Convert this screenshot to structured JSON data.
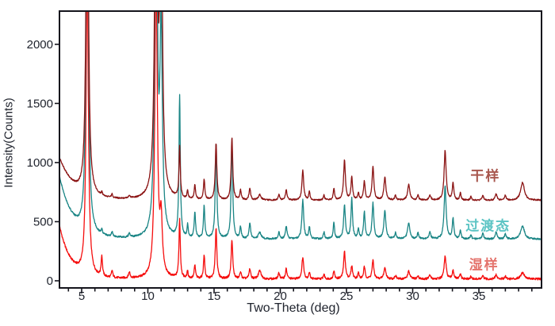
{
  "chart_data": {
    "type": "line",
    "title": "",
    "xlabel": "Two-Theta (deg)",
    "ylabel": "Intensity(Counts)",
    "xlim": [
      3.32,
      39.72
    ],
    "ylim": [
      -60,
      2280
    ],
    "grid": false,
    "background": "#ffffff",
    "axis_color": "#14141c",
    "tick_label_color": "#20242e",
    "x_axis": {
      "major_ticks": [
        5,
        10,
        15,
        20,
        25,
        30,
        35
      ],
      "minor_tick_start": 4,
      "minor_tick_end": 39,
      "minor_tick_step": 1
    },
    "y_axis": {
      "major_ticks": [
        0,
        500,
        1000,
        1500,
        2000
      ]
    },
    "peak_positions_deg": [
      5.42,
      6.52,
      7.3,
      8.6,
      10.62,
      11.0,
      12.4,
      13.0,
      13.55,
      14.25,
      15.15,
      16.35,
      17.0,
      17.7,
      18.45,
      19.9,
      20.45,
      21.7,
      22.2,
      23.3,
      24.05,
      24.85,
      25.4,
      25.9,
      26.35,
      27.0,
      27.9,
      28.7,
      29.7,
      30.4,
      31.3,
      32.45,
      33.05,
      33.6,
      34.4,
      35.3,
      36.3,
      37.0,
      38.3
    ],
    "peak_widths_deg": [
      0.1,
      0.06,
      0.06,
      0.07,
      0.11,
      0.11,
      0.06,
      0.05,
      0.06,
      0.06,
      0.07,
      0.07,
      0.06,
      0.07,
      0.12,
      0.07,
      0.07,
      0.08,
      0.06,
      0.06,
      0.06,
      0.08,
      0.07,
      0.06,
      0.07,
      0.08,
      0.09,
      0.07,
      0.1,
      0.07,
      0.08,
      0.09,
      0.07,
      0.06,
      0.06,
      0.07,
      0.08,
      0.07,
      0.17
    ],
    "series": [
      {
        "key": "wet",
        "name": "湿样",
        "color": "#f50d0d",
        "label_color": "#e4736c",
        "baseline_counts": 14,
        "low_angle_background": {
          "amplitude": 450,
          "decay_deg": 0.85
        },
        "noise_counts": 9,
        "peak_amplitudes": [
          2600,
          170,
          60,
          50,
          2600,
          450,
          500,
          60,
          110,
          200,
          430,
          330,
          60,
          85,
          70,
          50,
          85,
          185,
          55,
          40,
          70,
          230,
          110,
          50,
          100,
          155,
          95,
          30,
          65,
          25,
          30,
          190,
          75,
          45,
          20,
          25,
          35,
          25,
          55
        ],
        "label_anchor": {
          "two_theta": 35.4,
          "counts": 150
        }
      },
      {
        "key": "transition",
        "name": "过渡态",
        "color": "#1a8585",
        "label_color": "#5cc4c4",
        "baseline_counts": 352,
        "low_angle_background": {
          "amplitude": 530,
          "decay_deg": 1.0
        },
        "noise_counts": 7,
        "peak_amplitudes": [
          3400,
          35,
          40,
          35,
          3400,
          1700,
          1200,
          110,
          220,
          280,
          800,
          830,
          100,
          130,
          55,
          55,
          110,
          330,
          100,
          60,
          140,
          280,
          340,
          80,
          230,
          300,
          240,
          50,
          140,
          50,
          55,
          450,
          170,
          75,
          35,
          50,
          60,
          45,
          110
        ],
        "label_anchor": {
          "two_theta": 35.7,
          "counts": 478
        }
      },
      {
        "key": "dry",
        "name": "干样",
        "color": "#8b1414",
        "label_color": "#a8574e",
        "baseline_counts": 680,
        "low_angle_background": {
          "amplitude": 360,
          "decay_deg": 1.1
        },
        "noise_counts": 6,
        "peak_amplitudes": [
          3400,
          25,
          30,
          25,
          3400,
          2600,
          430,
          70,
          120,
          170,
          480,
          530,
          80,
          100,
          45,
          45,
          90,
          250,
          70,
          40,
          100,
          340,
          190,
          60,
          160,
          280,
          190,
          40,
          130,
          40,
          45,
          420,
          140,
          60,
          30,
          40,
          55,
          40,
          150
        ],
        "label_anchor": {
          "two_theta": 35.5,
          "counts": 900
        }
      }
    ]
  }
}
